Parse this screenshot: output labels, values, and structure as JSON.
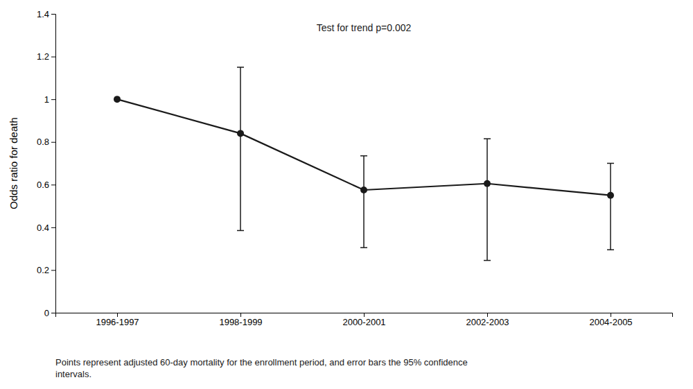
{
  "chart_data": {
    "type": "line",
    "ylabel": "Odds ratio for death",
    "categories": [
      "1996-1997",
      "1998-1999",
      "2000-2001",
      "2002-2003",
      "2004-2005"
    ],
    "values": [
      1.0,
      0.84,
      0.575,
      0.605,
      0.55
    ],
    "upper": [
      null,
      1.15,
      0.735,
      0.815,
      0.7
    ],
    "lower": [
      null,
      0.385,
      0.305,
      0.245,
      0.295
    ],
    "ylim": [
      0,
      1.4
    ],
    "yticks": [
      0,
      0.2,
      0.4,
      0.6,
      0.8,
      1,
      1.2,
      1.4
    ],
    "color": "#1a1a1a",
    "marker": "circle",
    "grid": false,
    "annotations": [
      "Test for trend p=0.002",
      "Points represent adjusted 60-day mortality for the enrollment period, and error bars the 95% confidence\nintervals."
    ]
  }
}
